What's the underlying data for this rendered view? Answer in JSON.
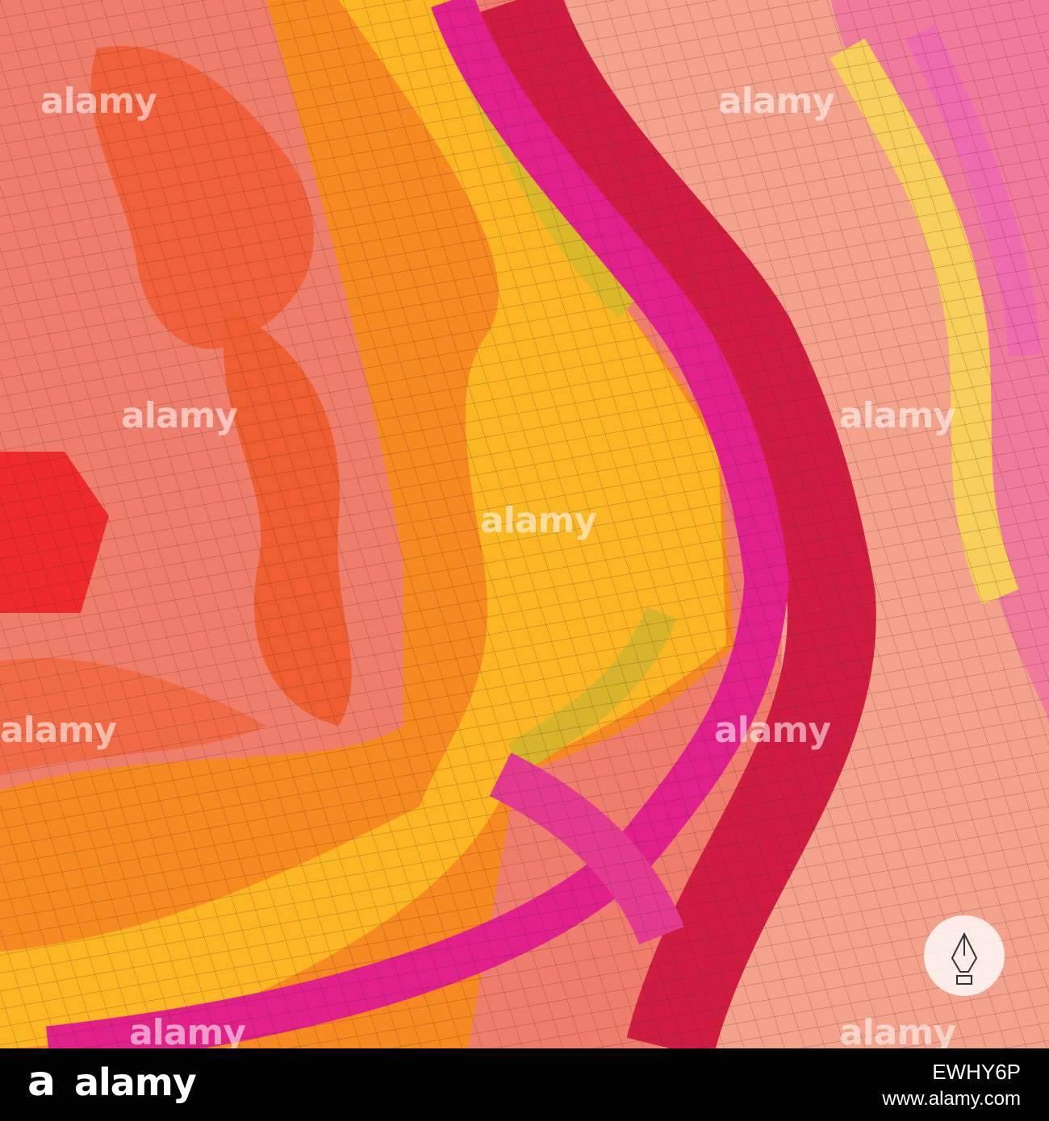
{
  "watermark": "alamy",
  "footer": {
    "logo": "a",
    "brand": "alamy",
    "image_id": "EWHY6P",
    "url": "www.alamy.com"
  }
}
